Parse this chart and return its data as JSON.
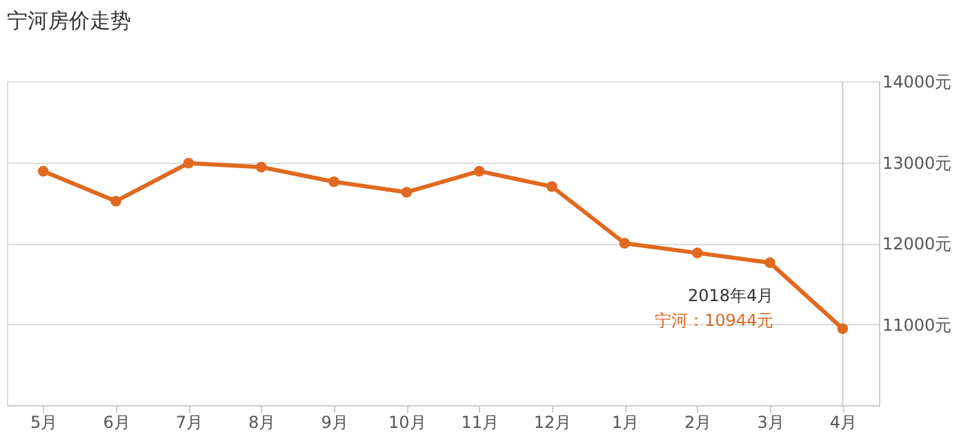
{
  "chart_data": {
    "type": "line",
    "title": "宁河房价走势",
    "categories": [
      "5月",
      "6月",
      "7月",
      "8月",
      "9月",
      "10月",
      "11月",
      "12月",
      "1月",
      "2月",
      "3月",
      "4月"
    ],
    "series": [
      {
        "color": "#e0691f",
        "values": [
          12890,
          12520,
          12990,
          12940,
          12760,
          12630,
          12890,
          12700,
          12000,
          11880,
          11760,
          10944
        ]
      }
    ],
    "ylim": [
      10000,
      14000
    ],
    "yticks": [
      {
        "value": 11000,
        "label": "11000元"
      },
      {
        "value": 12000,
        "label": "12000元"
      },
      {
        "value": 13000,
        "label": "13000元"
      },
      {
        "value": 14000,
        "label": "14000元"
      }
    ],
    "grid": "y",
    "marker": "circle",
    "line_style": "solid",
    "ref_lines": [
      {
        "axis": "x",
        "value": "4月",
        "color": "#cccccc"
      }
    ],
    "annotations": [
      "2018年4月",
      "宁河：10944元"
    ]
  }
}
